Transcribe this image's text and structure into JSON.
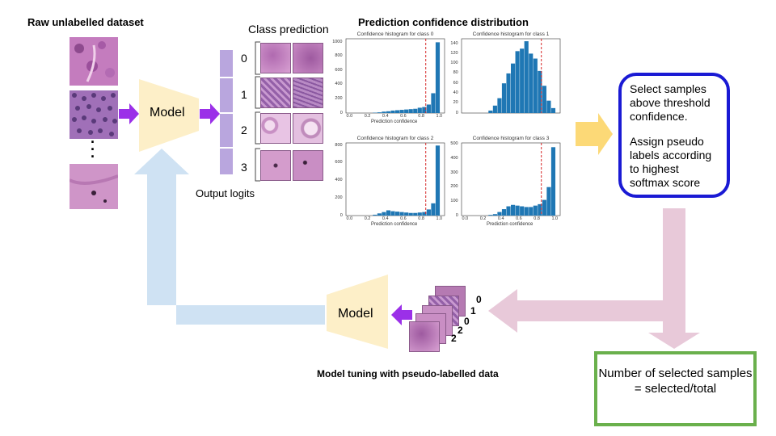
{
  "titles": {
    "raw_dataset": "Raw unlabelled dataset",
    "class_prediction": "Class prediction",
    "confidence_distribution": "Prediction confidence distribution",
    "output_logits": "Output logits",
    "model_tuning": "Model tuning with pseudo-labelled data"
  },
  "model_label": "Model",
  "model_label_bottom": "Model",
  "ellipsis": "·\n·\n·",
  "class_indices": [
    "0",
    "1",
    "2",
    "3"
  ],
  "stack_labels": [
    "0",
    "1",
    "0",
    "2",
    "2"
  ],
  "select_box": {
    "line1": "Select samples above threshold confidence.",
    "line2": "Assign pseudo labels according to highest softmax score"
  },
  "count_box": {
    "line1": "Number of selected samples",
    "line2": "= selected/total"
  },
  "colors": {
    "model": "#fdefc8",
    "logits": "#b9a6de",
    "arrow_purple": "#9b30e8",
    "arrow_yellow": "#fcd977",
    "arrow_pink": "#e8c9d9",
    "arrow_blue": "#cfe2f3",
    "hist_bar": "#1f77b4",
    "threshold": "#d62728",
    "tissue": "#c987c0"
  },
  "chart_data": [
    {
      "type": "bar",
      "title": "Confidence histogram for class 0",
      "xlabel": "Prediction confidence",
      "x_ticks": [
        "0.0",
        "0.2",
        "0.4",
        "0.6",
        "0.8",
        "1.0"
      ],
      "y_ticks": [
        "0",
        "200",
        "400",
        "600",
        "800",
        "1000"
      ],
      "ylim": [
        0,
        1050
      ],
      "bins_start": 0.25,
      "bin_width": 0.05,
      "values": [
        5,
        10,
        20,
        25,
        35,
        40,
        45,
        50,
        55,
        60,
        75,
        85,
        120,
        280,
        1000
      ],
      "threshold": 0.84
    },
    {
      "type": "bar",
      "title": "Confidence histogram for class 1",
      "xlabel": "",
      "x_ticks": [],
      "y_ticks": [
        "0",
        "20",
        "40",
        "60",
        "80",
        "100",
        "120",
        "140"
      ],
      "ylim": [
        0,
        150
      ],
      "bins_start": 0.25,
      "bin_width": 0.05,
      "values": [
        5,
        15,
        30,
        60,
        80,
        100,
        125,
        130,
        145,
        120,
        110,
        85,
        55,
        25,
        10
      ],
      "threshold": 0.84
    },
    {
      "type": "bar",
      "title": "Confidence histogram for class 2",
      "xlabel": "Prediction confidence",
      "x_ticks": [
        "0.0",
        "0.2",
        "0.4",
        "0.6",
        "0.8",
        "1.0"
      ],
      "y_ticks": [
        "0",
        "200",
        "400",
        "600",
        "800"
      ],
      "ylim": [
        0,
        830
      ],
      "bins_start": 0.25,
      "bin_width": 0.05,
      "values": [
        10,
        25,
        40,
        60,
        50,
        45,
        40,
        35,
        30,
        30,
        35,
        40,
        70,
        140,
        800
      ],
      "threshold": 0.84
    },
    {
      "type": "bar",
      "title": "Confidence histogram for class 3",
      "xlabel": "Prediction confidence",
      "x_ticks": [
        "0.0",
        "0.2",
        "0.4",
        "0.6",
        "0.8",
        "1.0"
      ],
      "y_ticks": [
        "0",
        "100",
        "200",
        "300",
        "400",
        "500"
      ],
      "ylim": [
        0,
        510
      ],
      "bins_start": 0.25,
      "bin_width": 0.05,
      "values": [
        5,
        10,
        25,
        45,
        65,
        75,
        70,
        65,
        60,
        60,
        70,
        80,
        110,
        200,
        480
      ],
      "threshold": 0.84
    }
  ]
}
